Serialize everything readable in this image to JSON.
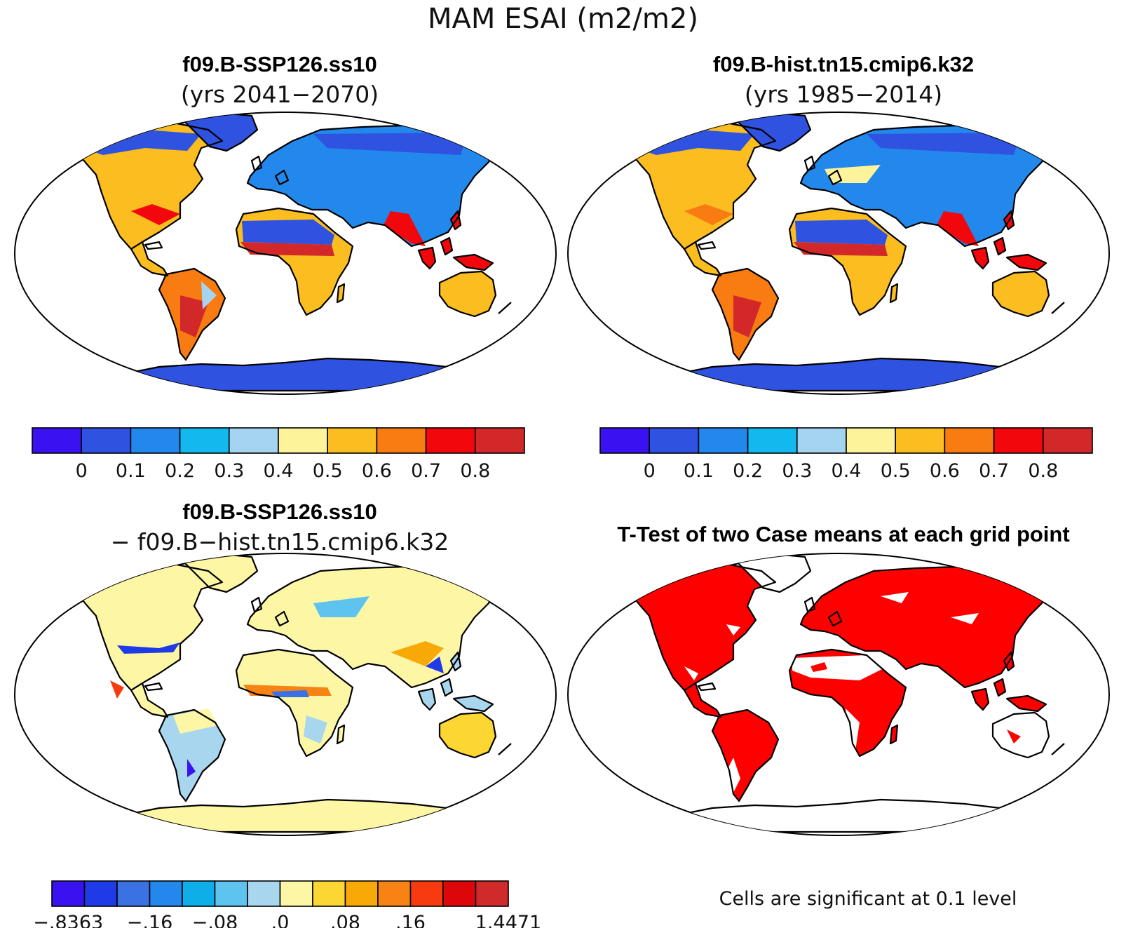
{
  "title": "MAM ESAI (m2/m2)",
  "panels": [
    {
      "id": "ssp126",
      "title": "f09.B-SSP126.ss10",
      "subtitle": "(yrs 2041−2070)",
      "colorbar": {
        "colors": [
          "#3a12f2",
          "#2f53e0",
          "#2288ec",
          "#13b9ee",
          "#a5d4f0",
          "#fdf39a",
          "#fbbd1f",
          "#f97c12",
          "#f2070d",
          "#d3282a"
        ],
        "ticks": [
          "0",
          "0.1",
          "0.2",
          "0.3",
          "0.4",
          "0.5",
          "0.6",
          "0.7",
          "0.8"
        ]
      }
    },
    {
      "id": "hist",
      "title": "f09.B-hist.tn15.cmip6.k32",
      "subtitle": "(yrs 1985−2014)",
      "colorbar": {
        "colors": [
          "#3a12f2",
          "#2f53e0",
          "#2288ec",
          "#13b9ee",
          "#a5d4f0",
          "#fdf39a",
          "#fbbd1f",
          "#f97c12",
          "#f2070d",
          "#d3282a"
        ],
        "ticks": [
          "0",
          "0.1",
          "0.2",
          "0.3",
          "0.4",
          "0.5",
          "0.6",
          "0.7",
          "0.8"
        ]
      }
    },
    {
      "id": "diff",
      "title": "f09.B-SSP126.ss10",
      "subtitle": "− f09.B−hist.tn15.cmip6.k32",
      "colorbar": {
        "colors": [
          "#3a12f2",
          "#1f3be8",
          "#3a72e3",
          "#2288ec",
          "#0eaee8",
          "#5ec3ef",
          "#a8d6ef",
          "#fdf7a5",
          "#fcd633",
          "#f9a907",
          "#f78315",
          "#f73a10",
          "#dc060b",
          "#d02a2b"
        ],
        "ticks": [
          "−.8363",
          "−.16",
          "−.08",
          ".0",
          ".08",
          ".16",
          "1.4471"
        ]
      }
    },
    {
      "id": "ttest",
      "title": "T-Test of two Case means at each grid point",
      "note": "Cells are significant at 0.1 level",
      "sig_color": "#ff0000"
    }
  ]
}
